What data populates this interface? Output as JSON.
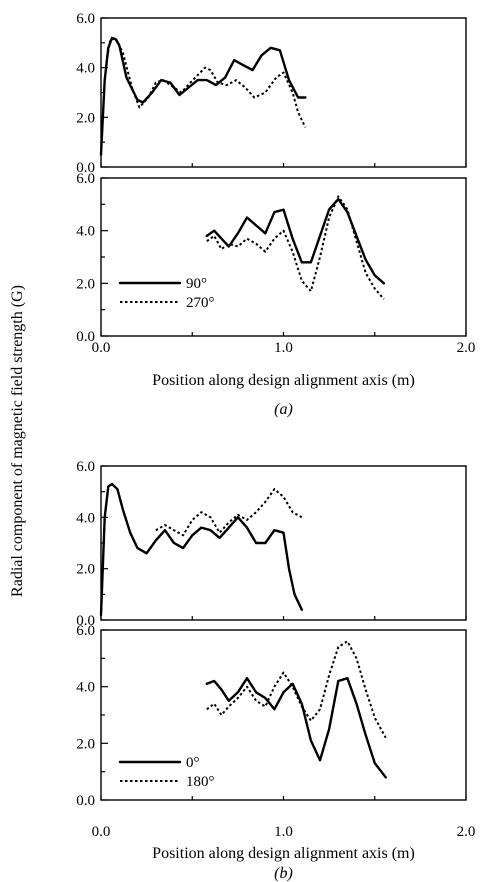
{
  "figure": {
    "ylabel": "Radial component of magnetic field strength (G)"
  },
  "chart_data": [
    {
      "id": "a-top",
      "type": "line",
      "ylim": [
        0,
        6
      ],
      "xlim": [
        0,
        2
      ],
      "yticks": [
        "0.0",
        "2.0",
        "4.0",
        "6.0"
      ],
      "series": [
        {
          "style": "solid",
          "x": [
            0,
            0.02,
            0.04,
            0.06,
            0.08,
            0.1,
            0.14,
            0.2,
            0.23,
            0.28,
            0.33,
            0.38,
            0.43,
            0.48,
            0.53,
            0.58,
            0.63,
            0.68,
            0.73,
            0.78,
            0.83,
            0.88,
            0.93,
            0.98,
            1.03,
            1.08,
            1.12
          ],
          "y": [
            0.5,
            3.5,
            4.8,
            5.2,
            5.15,
            4.9,
            3.6,
            2.7,
            2.6,
            3.0,
            3.5,
            3.4,
            2.9,
            3.2,
            3.5,
            3.5,
            3.3,
            3.6,
            4.3,
            4.1,
            3.9,
            4.5,
            4.8,
            4.7,
            3.5,
            2.8,
            2.8
          ]
        },
        {
          "style": "dotted",
          "x": [
            0.03,
            0.05,
            0.08,
            0.12,
            0.17,
            0.21,
            0.26,
            0.3,
            0.34,
            0.4,
            0.44,
            0.49,
            0.53,
            0.57,
            0.6,
            0.64,
            0.69,
            0.74,
            0.79,
            0.84,
            0.9,
            0.96,
            1.0,
            1.05,
            1.08,
            1.12
          ],
          "y": [
            4.2,
            5.1,
            5.2,
            4.6,
            3.2,
            2.4,
            2.8,
            3.4,
            3.5,
            3.2,
            3.0,
            3.4,
            3.7,
            4.0,
            3.9,
            3.4,
            3.3,
            3.5,
            3.2,
            2.8,
            3.0,
            3.6,
            3.8,
            3.0,
            2.2,
            1.6
          ]
        }
      ]
    },
    {
      "id": "a-bottom",
      "type": "line",
      "ylim": [
        0,
        6
      ],
      "xlim": [
        0,
        2
      ],
      "yticks": [
        "0.0",
        "2.0",
        "4.0",
        "6.0"
      ],
      "xticks": [
        "0.0",
        "1.0",
        "2.0"
      ],
      "xlabel": "Position along design alignment axis (m)",
      "legend": [
        "90°",
        "270°"
      ],
      "panel_label": "(a)",
      "series": [
        {
          "name": "90°",
          "style": "solid",
          "x": [
            0.58,
            0.62,
            0.66,
            0.7,
            0.75,
            0.8,
            0.85,
            0.9,
            0.95,
            1.0,
            1.05,
            1.1,
            1.15,
            1.2,
            1.25,
            1.3,
            1.35,
            1.4,
            1.45,
            1.5,
            1.55
          ],
          "y": [
            3.8,
            4.0,
            3.7,
            3.4,
            3.9,
            4.5,
            4.2,
            3.9,
            4.7,
            4.8,
            3.7,
            2.8,
            2.8,
            3.8,
            4.8,
            5.2,
            4.7,
            3.8,
            2.9,
            2.3,
            2.0
          ]
        },
        {
          "name": "270°",
          "style": "dotted",
          "x": [
            0.58,
            0.62,
            0.66,
            0.7,
            0.75,
            0.8,
            0.85,
            0.9,
            0.95,
            1.0,
            1.05,
            1.1,
            1.15,
            1.2,
            1.25,
            1.3,
            1.35,
            1.4,
            1.45,
            1.5,
            1.55
          ],
          "y": [
            3.6,
            3.8,
            3.3,
            3.5,
            3.4,
            3.7,
            3.5,
            3.2,
            3.7,
            4.0,
            3.2,
            2.1,
            1.7,
            3.0,
            4.5,
            5.3,
            4.8,
            3.6,
            2.4,
            1.8,
            1.4
          ]
        }
      ]
    },
    {
      "id": "b-top",
      "type": "line",
      "ylim": [
        0,
        6
      ],
      "xlim": [
        0,
        2
      ],
      "yticks": [
        "0.0",
        "2.0",
        "4.0",
        "6.0"
      ],
      "series": [
        {
          "style": "solid",
          "x": [
            0.0,
            0.02,
            0.04,
            0.06,
            0.09,
            0.12,
            0.16,
            0.2,
            0.25,
            0.3,
            0.35,
            0.4,
            0.45,
            0.5,
            0.55,
            0.6,
            0.65,
            0.7,
            0.75,
            0.8,
            0.85,
            0.9,
            0.95,
            1.0,
            1.03,
            1.06,
            1.1
          ],
          "y": [
            0.2,
            4.0,
            5.2,
            5.3,
            5.1,
            4.3,
            3.4,
            2.8,
            2.6,
            3.1,
            3.5,
            3.0,
            2.8,
            3.3,
            3.6,
            3.5,
            3.2,
            3.6,
            4.0,
            3.6,
            3.0,
            3.0,
            3.5,
            3.4,
            2.0,
            1.0,
            0.4
          ]
        },
        {
          "style": "dotted",
          "x": [
            0.3,
            0.35,
            0.4,
            0.45,
            0.5,
            0.55,
            0.6,
            0.65,
            0.7,
            0.75,
            0.8,
            0.85,
            0.9,
            0.95,
            1.0,
            1.05,
            1.1
          ],
          "y": [
            3.5,
            3.7,
            3.5,
            3.3,
            3.9,
            4.2,
            4.0,
            3.4,
            3.8,
            4.1,
            3.9,
            4.2,
            4.6,
            5.1,
            4.8,
            4.2,
            4.0
          ]
        }
      ]
    },
    {
      "id": "b-bottom",
      "type": "line",
      "ylim": [
        0,
        6
      ],
      "xlim": [
        0,
        2
      ],
      "yticks": [
        "0.0",
        "2.0",
        "4.0",
        "6.0"
      ],
      "xticks": [
        "0.0",
        "1.0",
        "2.0"
      ],
      "xlabel": "Position along design alignment axis (m)",
      "legend": [
        "0°",
        "180°"
      ],
      "panel_label": "(b)",
      "series": [
        {
          "name": "0°",
          "style": "solid",
          "x": [
            0.58,
            0.62,
            0.66,
            0.7,
            0.75,
            0.8,
            0.85,
            0.9,
            0.95,
            1.0,
            1.05,
            1.1,
            1.15,
            1.2,
            1.25,
            1.3,
            1.35,
            1.4,
            1.45,
            1.5,
            1.56
          ],
          "y": [
            4.1,
            4.2,
            3.9,
            3.5,
            3.8,
            4.3,
            3.8,
            3.6,
            3.2,
            3.8,
            4.1,
            3.4,
            2.1,
            1.4,
            2.5,
            4.2,
            4.3,
            3.4,
            2.3,
            1.3,
            0.8
          ]
        },
        {
          "name": "180°",
          "style": "dotted",
          "x": [
            0.58,
            0.62,
            0.66,
            0.7,
            0.75,
            0.8,
            0.85,
            0.9,
            0.95,
            1.0,
            1.05,
            1.1,
            1.15,
            1.2,
            1.25,
            1.3,
            1.35,
            1.4,
            1.45,
            1.5,
            1.56
          ],
          "y": [
            3.2,
            3.4,
            3.0,
            3.3,
            3.6,
            4.0,
            3.5,
            3.3,
            4.0,
            4.5,
            4.0,
            3.3,
            2.8,
            3.2,
            4.4,
            5.4,
            5.6,
            5.0,
            3.9,
            2.9,
            2.2
          ]
        }
      ]
    }
  ]
}
